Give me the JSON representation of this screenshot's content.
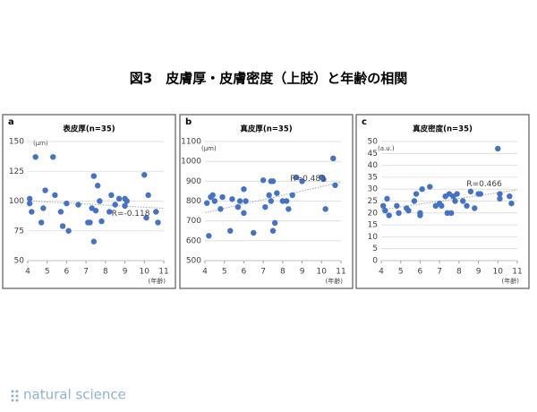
{
  "title": "図3　皮膚厚・皮膚密度（上肢）と年齢の相関",
  "brand": "natural science",
  "chart_data": [
    {
      "type": "scatter",
      "panel": "a",
      "title": "表皮厚(n=35)",
      "y_label": "(μm)",
      "x_label": "(年齢)",
      "annotation": "R=-0.118",
      "color": "#4472c4",
      "xlim": [
        4,
        11
      ],
      "xticks": [
        4,
        5,
        6,
        7,
        8,
        9,
        10,
        11
      ],
      "ylim": [
        50,
        150
      ],
      "yticks": [
        50,
        75,
        100,
        125,
        150
      ],
      "grid": true,
      "x": [
        4.1,
        4.1,
        4.2,
        4.4,
        4.7,
        4.8,
        4.9,
        5.3,
        5.4,
        5.7,
        5.8,
        6.0,
        6.1,
        6.6,
        7.1,
        7.2,
        7.3,
        7.4,
        7.4,
        7.5,
        7.6,
        7.7,
        7.8,
        8.2,
        8.3,
        8.5,
        8.7,
        9.0,
        9.1,
        10.0,
        10.1,
        10.2,
        10.6,
        10.7,
        9.0
      ],
      "values": [
        102,
        98,
        91,
        137,
        82,
        94,
        109,
        137,
        105,
        91,
        79,
        98,
        75,
        97,
        82,
        82,
        94,
        66,
        121,
        92,
        113,
        100,
        83,
        91,
        105,
        97,
        102,
        102,
        100,
        122,
        86,
        105,
        91,
        82,
        96
      ]
    },
    {
      "type": "scatter",
      "panel": "b",
      "title": "真皮厚(n=35)",
      "y_label": "(μm)",
      "x_label": "(年齢)",
      "annotation": "R=0.483",
      "color": "#4472c4",
      "xlim": [
        4,
        11
      ],
      "xticks": [
        4,
        5,
        6,
        7,
        8,
        9,
        10,
        11
      ],
      "ylim": [
        500,
        1100
      ],
      "yticks": [
        500,
        600,
        700,
        800,
        900,
        1000,
        1100
      ],
      "grid": true,
      "x": [
        4.1,
        4.2,
        4.3,
        4.4,
        4.5,
        4.8,
        4.9,
        5.3,
        5.4,
        5.7,
        5.8,
        6.0,
        6.0,
        6.5,
        7.0,
        7.1,
        7.3,
        7.4,
        7.4,
        7.5,
        7.6,
        7.7,
        8.0,
        8.3,
        8.5,
        8.7,
        9.0,
        10.0,
        10.1,
        10.2,
        10.6,
        10.7,
        7.5,
        6.1,
        8.2
      ],
      "values": [
        790,
        625,
        820,
        830,
        800,
        760,
        820,
        650,
        810,
        770,
        800,
        740,
        860,
        640,
        905,
        770,
        830,
        800,
        900,
        650,
        690,
        840,
        800,
        760,
        830,
        920,
        900,
        920,
        910,
        760,
        1015,
        880,
        900,
        800,
        800
      ]
    },
    {
      "type": "scatter",
      "panel": "c",
      "title": "真皮密度(n=35)",
      "y_label": "(a.u.)",
      "x_label": "(年齢)",
      "annotation": "R=0.466",
      "color": "#4472c4",
      "xlim": [
        4,
        11
      ],
      "xticks": [
        4,
        5,
        6,
        7,
        8,
        9,
        10,
        11
      ],
      "ylim": [
        0,
        50
      ],
      "yticks": [
        0,
        5,
        10,
        15,
        20,
        25,
        30,
        35,
        40,
        45,
        50
      ],
      "grid": true,
      "x": [
        4.1,
        4.2,
        4.3,
        4.4,
        4.8,
        4.9,
        5.3,
        5.4,
        5.7,
        5.8,
        6.0,
        6.0,
        6.1,
        6.5,
        7.0,
        7.1,
        7.3,
        7.4,
        7.5,
        7.6,
        7.7,
        7.8,
        8.2,
        8.4,
        8.6,
        8.8,
        9.0,
        10.0,
        10.1,
        10.1,
        10.6,
        10.7,
        6.8,
        7.9,
        9.1
      ],
      "values": [
        23,
        21,
        26,
        19,
        23,
        20,
        22,
        21,
        25,
        28,
        20,
        19,
        30,
        31,
        24,
        23,
        27,
        20,
        28,
        20,
        27,
        25,
        25,
        23,
        29,
        22,
        28,
        47,
        26,
        28,
        27,
        24,
        23,
        28,
        28
      ]
    }
  ]
}
